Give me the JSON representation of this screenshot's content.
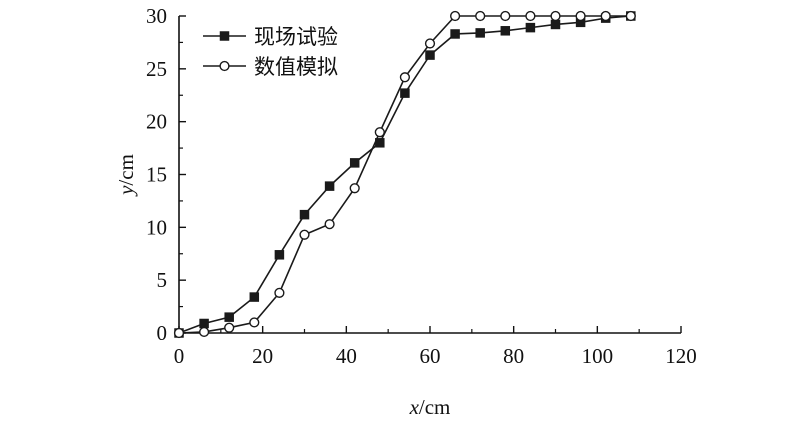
{
  "chart_data": {
    "type": "line",
    "title": "",
    "xlabel": "x/cm",
    "ylabel": "y/cm",
    "xlabel_parts": {
      "var": "x",
      "unit": "/cm"
    },
    "ylabel_parts": {
      "var": "y",
      "unit": "/cm"
    },
    "xlim": [
      0,
      120
    ],
    "ylim": [
      0,
      30
    ],
    "xticks": [
      0,
      20,
      40,
      60,
      80,
      100,
      120
    ],
    "yticks": [
      0,
      5,
      10,
      15,
      20,
      25,
      30
    ],
    "grid": false,
    "legend_position": "top-left",
    "series": [
      {
        "name": "现场试验",
        "marker": "filled-square",
        "color": "#1a1a1a",
        "x": [
          0,
          6,
          12,
          18,
          24,
          30,
          36,
          42,
          48,
          54,
          60,
          66,
          72,
          78,
          84,
          90,
          96,
          102,
          108
        ],
        "y": [
          0,
          0.9,
          1.5,
          3.4,
          7.4,
          11.2,
          13.9,
          16.1,
          18.0,
          22.7,
          26.3,
          28.3,
          28.4,
          28.6,
          28.9,
          29.2,
          29.4,
          29.8,
          30.0
        ]
      },
      {
        "name": "数值模拟",
        "marker": "open-circle",
        "color": "#1a1a1a",
        "x": [
          0,
          6,
          12,
          18,
          24,
          30,
          36,
          42,
          48,
          54,
          60,
          66,
          72,
          78,
          84,
          90,
          96,
          102,
          108
        ],
        "y": [
          0,
          0.1,
          0.5,
          1.0,
          3.8,
          9.3,
          10.3,
          13.7,
          19.0,
          24.2,
          27.4,
          30.0,
          30.0,
          30.0,
          30.0,
          30.0,
          30.0,
          30.0,
          30.0
        ]
      }
    ]
  }
}
